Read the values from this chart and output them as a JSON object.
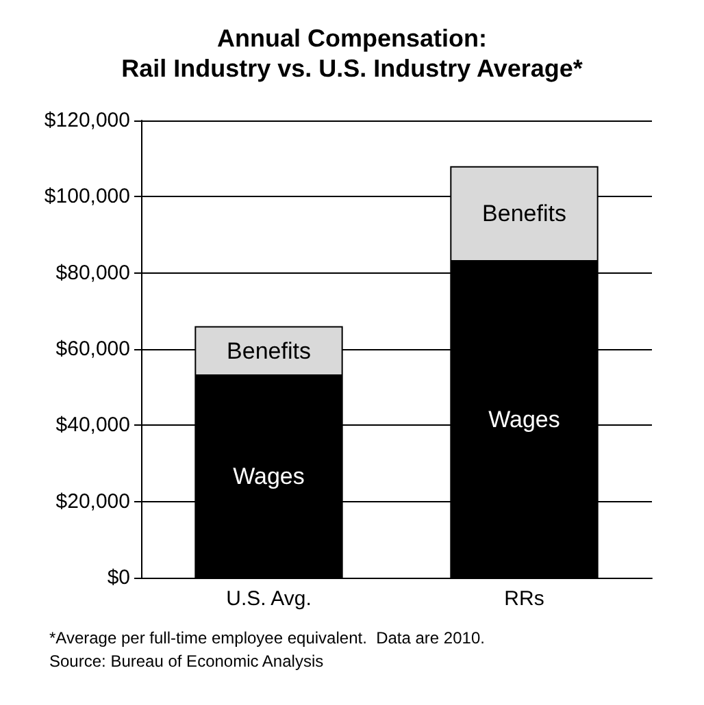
{
  "chart_data": {
    "type": "bar",
    "title": "Annual Compensation:\nRail Industry vs. U.S. Industry Average*",
    "categories": [
      "U.S. Avg.",
      "RRs"
    ],
    "stacked": true,
    "series": [
      {
        "name": "Wages",
        "color": "#000000",
        "values": [
          53000,
          83000
        ]
      },
      {
        "name": "Benefits",
        "color": "#d9d9d9",
        "values": [
          13000,
          25000
        ]
      }
    ],
    "ylim": [
      0,
      120000
    ],
    "yticks": [
      {
        "value": 0,
        "label": "$0"
      },
      {
        "value": 20000,
        "label": "$20,000"
      },
      {
        "value": 40000,
        "label": "$40,000"
      },
      {
        "value": 60000,
        "label": "$60,000"
      },
      {
        "value": 80000,
        "label": "$80,000"
      },
      {
        "value": 100000,
        "label": "$100,000"
      },
      {
        "value": 120000,
        "label": "$120,000"
      }
    ],
    "grid": "y",
    "legend": false,
    "annotations": [
      "*Average per full-time employee equivalent.  Data are 2010.",
      "Source: Bureau of Economic Analysis"
    ]
  }
}
